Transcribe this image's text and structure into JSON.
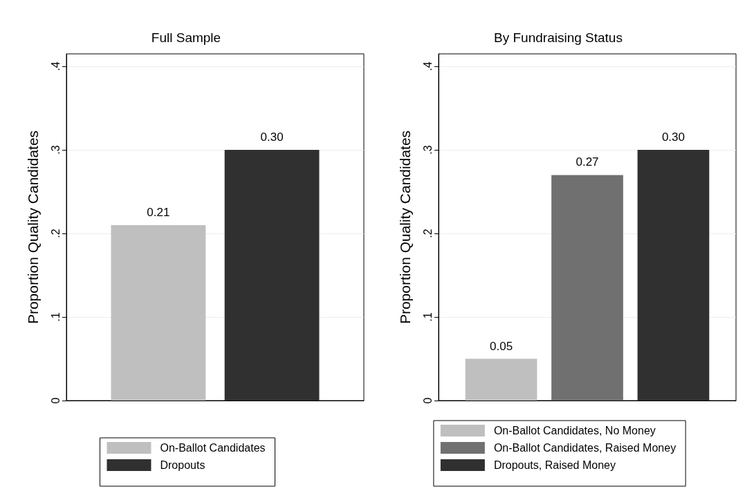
{
  "chart_data": [
    {
      "type": "bar",
      "title": "Full Sample",
      "ylabel": "Proportion Quality Candidates",
      "categories": [
        null
      ],
      "series": [
        {
          "name": "On-Ballot Candidates",
          "color": "#bfbfbf",
          "values": [
            0.21
          ],
          "value_labels": [
            "0.21"
          ]
        },
        {
          "name": "Dropouts",
          "color": "#303030",
          "values": [
            0.3
          ],
          "value_labels": [
            "0.30"
          ]
        }
      ],
      "ylim": [
        0,
        0.415
      ],
      "yticks": [
        {
          "value": 0,
          "label": "0"
        },
        {
          "value": 0.1,
          "label": ".1"
        },
        {
          "value": 0.2,
          "label": ".2"
        },
        {
          "value": 0.3,
          "label": ".3"
        },
        {
          "value": 0.4,
          "label": ".4"
        }
      ],
      "grid": "y",
      "legend": "bottom"
    },
    {
      "type": "bar",
      "title": "By Fundraising Status",
      "ylabel": "Proportion Quality Candidates",
      "categories": [
        null
      ],
      "series": [
        {
          "name": "On-Ballot Candidates, No Money",
          "color": "#bfbfbf",
          "values": [
            0.05
          ],
          "value_labels": [
            "0.05"
          ]
        },
        {
          "name": "On-Ballot Candidates, Raised Money",
          "color": "#707070",
          "values": [
            0.27
          ],
          "value_labels": [
            "0.27"
          ]
        },
        {
          "name": "Dropouts, Raised Money",
          "color": "#303030",
          "values": [
            0.3
          ],
          "value_labels": [
            "0.30"
          ]
        }
      ],
      "ylim": [
        0,
        0.415
      ],
      "yticks": [
        {
          "value": 0,
          "label": "0"
        },
        {
          "value": 0.1,
          "label": ".1"
        },
        {
          "value": 0.2,
          "label": ".2"
        },
        {
          "value": 0.3,
          "label": ".3"
        },
        {
          "value": 0.4,
          "label": ".4"
        }
      ],
      "grid": "y",
      "legend": "bottom"
    }
  ]
}
